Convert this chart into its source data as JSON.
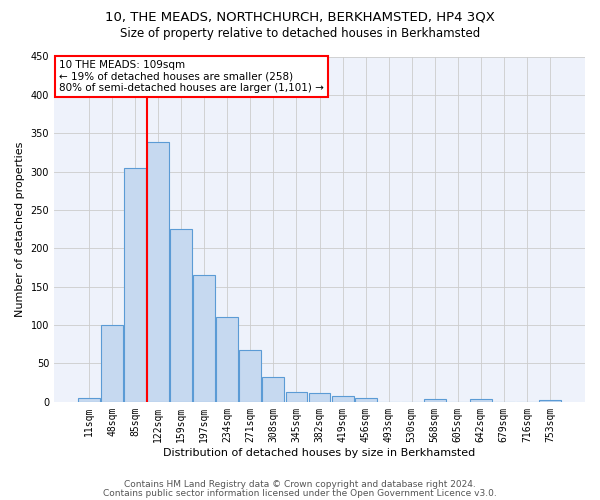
{
  "title1": "10, THE MEADS, NORTHCHURCH, BERKHAMSTED, HP4 3QX",
  "title2": "Size of property relative to detached houses in Berkhamsted",
  "xlabel": "Distribution of detached houses by size in Berkhamsted",
  "ylabel": "Number of detached properties",
  "categories": [
    "11sqm",
    "48sqm",
    "85sqm",
    "122sqm",
    "159sqm",
    "197sqm",
    "234sqm",
    "271sqm",
    "308sqm",
    "345sqm",
    "382sqm",
    "419sqm",
    "456sqm",
    "493sqm",
    "530sqm",
    "568sqm",
    "605sqm",
    "642sqm",
    "679sqm",
    "716sqm",
    "753sqm"
  ],
  "values": [
    5,
    100,
    305,
    338,
    225,
    165,
    110,
    68,
    33,
    13,
    12,
    8,
    5,
    0,
    0,
    4,
    0,
    4,
    0,
    0,
    3
  ],
  "bar_color": "#c6d9f0",
  "bar_edge_color": "#5b9bd5",
  "vline_color": "red",
  "annotation_text": "10 THE MEADS: 109sqm\n← 19% of detached houses are smaller (258)\n80% of semi-detached houses are larger (1,101) →",
  "annotation_box_color": "white",
  "annotation_box_edge": "red",
  "ylim": [
    0,
    450
  ],
  "yticks": [
    0,
    50,
    100,
    150,
    200,
    250,
    300,
    350,
    400,
    450
  ],
  "footer1": "Contains HM Land Registry data © Crown copyright and database right 2024.",
  "footer2": "Contains public sector information licensed under the Open Government Licence v3.0.",
  "plot_bg_color": "#eef2fb",
  "title1_fontsize": 9.5,
  "title2_fontsize": 8.5,
  "xlabel_fontsize": 8,
  "ylabel_fontsize": 8,
  "tick_fontsize": 7,
  "annotation_fontsize": 7.5,
  "footer_fontsize": 6.5
}
